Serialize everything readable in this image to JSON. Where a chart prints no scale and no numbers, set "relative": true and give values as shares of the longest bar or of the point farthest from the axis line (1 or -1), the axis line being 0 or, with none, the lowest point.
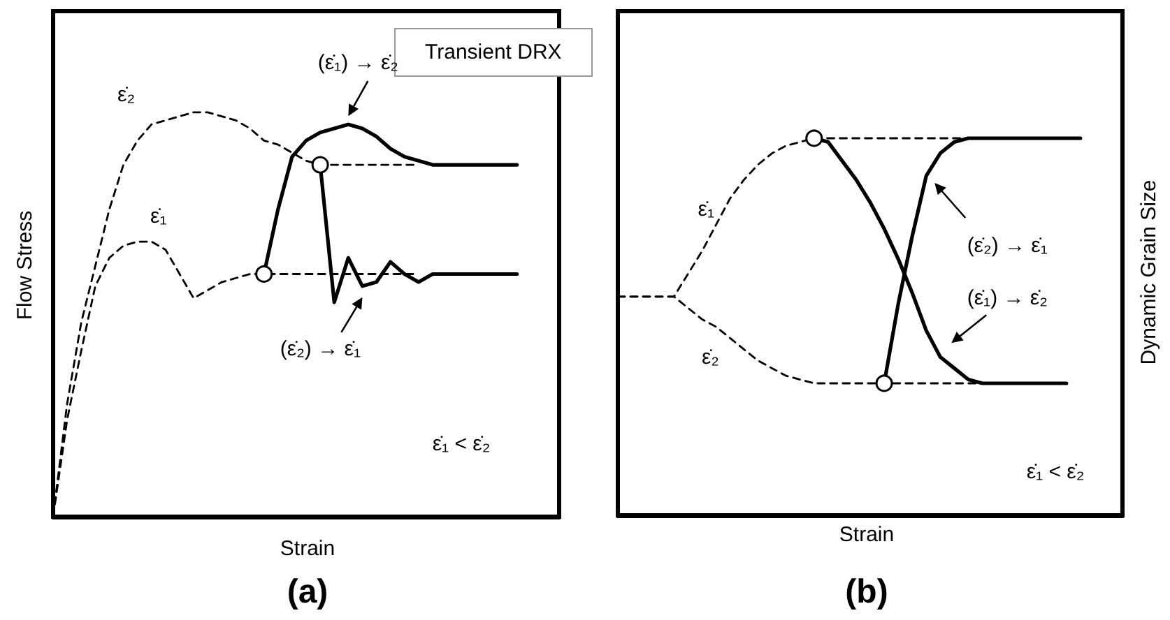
{
  "chart_data": [
    {
      "type": "line",
      "relative": true,
      "title": "Transient DRX",
      "xlabel": "Strain",
      "ylabel": "Flow Stress",
      "tick_labels": false,
      "annotations": [
        "ε̇₁ < ε̇₂",
        "(a)"
      ],
      "categories": [
        null,
        null,
        null,
        null,
        null,
        null,
        null,
        null,
        null,
        null,
        null,
        null,
        null,
        null,
        null,
        null,
        null,
        null,
        null,
        null,
        null,
        null,
        null,
        null,
        null,
        null,
        null,
        null,
        null,
        null,
        null,
        null,
        null,
        null,
        null,
        null,
        null
      ],
      "series": [
        {
          "name": "ε̇₂",
          "color": "#000000",
          "line_style": "dashed",
          "values": [
            0,
            0.28,
            0.48,
            0.62,
            0.76,
            0.87,
            0.93,
            0.97,
            0.98,
            0.99,
            1,
            1,
            0.99,
            0.98,
            0.96,
            0.93,
            0.92,
            0.9,
            0.88,
            0.87,
            0.87,
            0.87,
            0.87,
            0.87,
            0.87,
            0.87,
            0.87,
            null,
            null,
            null,
            null,
            null,
            null,
            null,
            null,
            null,
            null
          ]
        },
        {
          "name": "ε̇₁",
          "color": "#000000",
          "line_style": "dashed",
          "values": [
            0,
            0.24,
            0.41,
            0.57,
            0.64,
            0.67,
            0.68,
            0.68,
            0.66,
            0.6,
            0.54,
            0.56,
            0.58,
            0.59,
            0.6,
            0.6,
            0.6,
            0.6,
            0.6,
            0.6,
            0.6,
            0.6,
            0.6,
            0.6,
            0.6,
            0.6,
            0.6,
            null,
            null,
            null,
            null,
            null,
            null,
            null,
            null,
            null,
            null
          ]
        },
        {
          "name": "(ε̇₁) → ε̇₂",
          "color": "#000000",
          "line_style": "solid",
          "values": [
            null,
            null,
            null,
            null,
            null,
            null,
            null,
            null,
            null,
            null,
            null,
            null,
            null,
            null,
            null,
            0.6,
            0.76,
            0.89,
            0.93,
            0.95,
            0.96,
            0.97,
            0.96,
            0.94,
            0.91,
            0.89,
            0.88,
            0.87,
            0.87,
            0.87,
            0.87,
            0.87,
            0.87,
            0.87,
            null,
            null,
            null
          ]
        },
        {
          "name": "(ε̇₂) → ε̇₁",
          "color": "#000000",
          "line_style": "solid",
          "values": [
            null,
            null,
            null,
            null,
            null,
            null,
            null,
            null,
            null,
            null,
            null,
            null,
            null,
            null,
            null,
            null,
            null,
            null,
            null,
            0.87,
            0.53,
            0.64,
            0.57,
            0.58,
            0.63,
            0.6,
            0.58,
            0.6,
            0.6,
            0.6,
            0.6,
            0.6,
            0.6,
            0.6,
            null,
            null,
            null
          ]
        },
        {
          "marker": "circle",
          "line_style": "none",
          "color": "#000000",
          "values": [
            null,
            null,
            null,
            null,
            null,
            null,
            null,
            null,
            null,
            null,
            null,
            null,
            null,
            null,
            null,
            0.6,
            null,
            null,
            null,
            0.87,
            null,
            null,
            null,
            null,
            null,
            null,
            null,
            null,
            null,
            null,
            null,
            null,
            null,
            null,
            null,
            null,
            null
          ]
        }
      ]
    },
    {
      "type": "line",
      "relative": true,
      "xlabel": "Strain",
      "ylabel": "Dynamic Grain Size",
      "tick_labels": false,
      "annotations": [
        "ε̇₁ < ε̇₂",
        "(b)"
      ],
      "categories": [
        null,
        null,
        null,
        null,
        null,
        null,
        null,
        null,
        null,
        null,
        null,
        null,
        null,
        null,
        null,
        null,
        null,
        null,
        null,
        null,
        null,
        null,
        null,
        null,
        null,
        null,
        null,
        null,
        null,
        null,
        null,
        null,
        null,
        null,
        null,
        null,
        null
      ],
      "series": [
        {
          "name": "ε̇₁",
          "color": "#000000",
          "line_style": "dashed",
          "values": [
            0.58,
            0.58,
            0.58,
            0.58,
            0.58,
            0.64,
            0.7,
            0.77,
            0.84,
            0.89,
            0.93,
            0.96,
            0.98,
            0.99,
            1,
            1,
            1,
            1,
            1,
            1,
            1,
            1,
            1,
            1,
            1,
            1,
            null,
            null,
            null,
            null,
            null,
            null,
            null,
            null,
            null,
            null,
            null
          ]
        },
        {
          "name": "ε̇₂",
          "color": "#000000",
          "line_style": "dashed",
          "values": [
            0.58,
            0.58,
            0.58,
            0.58,
            0.58,
            0.55,
            0.52,
            0.5,
            0.47,
            0.44,
            0.41,
            0.39,
            0.37,
            0.36,
            0.35,
            0.35,
            0.35,
            0.35,
            0.35,
            0.35,
            0.35,
            0.35,
            0.35,
            0.35,
            0.35,
            0.35,
            0.35,
            null,
            null,
            null,
            null,
            null,
            null,
            null,
            null,
            null,
            null
          ]
        },
        {
          "name": "(ε̇₂) → ε̇₁",
          "color": "#000000",
          "line_style": "solid",
          "values": [
            null,
            null,
            null,
            null,
            null,
            null,
            null,
            null,
            null,
            null,
            null,
            null,
            null,
            null,
            null,
            null,
            null,
            null,
            null,
            0.35,
            0.56,
            0.74,
            0.9,
            0.96,
            0.99,
            1,
            1,
            1,
            1,
            1,
            1,
            1,
            1,
            1,
            null,
            null,
            null
          ]
        },
        {
          "name": "(ε̇₁) → ε̇₂",
          "color": "#000000",
          "line_style": "solid",
          "values": [
            null,
            null,
            null,
            null,
            null,
            null,
            null,
            null,
            null,
            null,
            null,
            null,
            null,
            null,
            1,
            0.99,
            0.94,
            0.89,
            0.83,
            0.76,
            0.68,
            0.59,
            0.49,
            0.42,
            0.39,
            0.36,
            0.35,
            0.35,
            0.35,
            0.35,
            0.35,
            0.35,
            0.35,
            null,
            null,
            null,
            null
          ]
        },
        {
          "marker": "circle",
          "line_style": "none",
          "color": "#000000",
          "values": [
            null,
            null,
            null,
            null,
            null,
            null,
            null,
            null,
            null,
            null,
            null,
            null,
            null,
            null,
            1,
            null,
            null,
            null,
            null,
            0.35,
            null,
            null,
            null,
            null,
            null,
            null,
            null,
            null,
            null,
            null,
            null,
            null,
            null,
            null,
            null,
            null,
            null
          ]
        }
      ]
    }
  ]
}
